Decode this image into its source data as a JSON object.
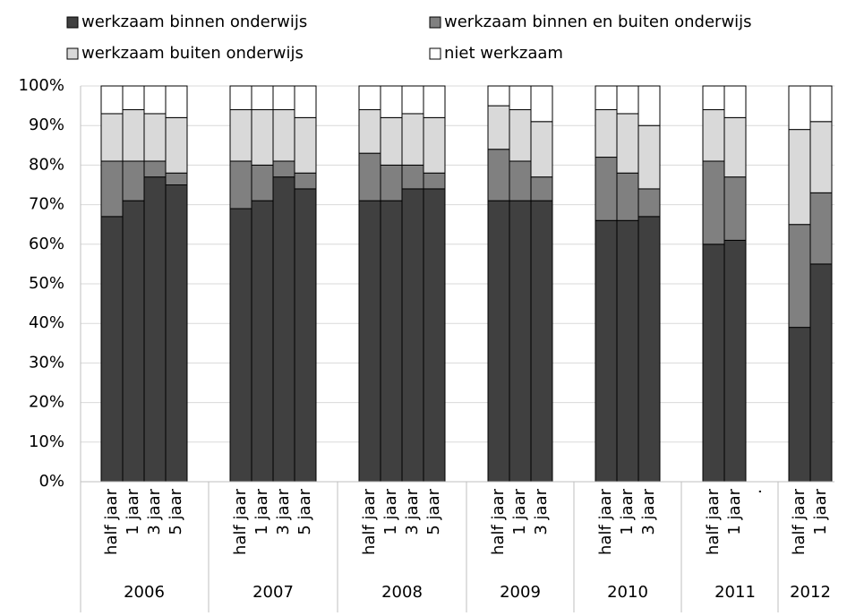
{
  "chart_data": {
    "type": "stacked-bar",
    "groups": [
      {
        "label": "2006",
        "categories": [
          "half jaar",
          "1 jaar",
          "3 jaar",
          "5 jaar"
        ]
      },
      {
        "label": "2007",
        "categories": [
          "half jaar",
          "1 jaar",
          "3 jaar",
          "5 jaar"
        ]
      },
      {
        "label": "2008",
        "categories": [
          "half jaar",
          "1 jaar",
          "3 jaar",
          "5 jaar"
        ]
      },
      {
        "label": "2009",
        "categories": [
          "half jaar",
          "1 jaar",
          "3 jaar"
        ]
      },
      {
        "label": "2010",
        "categories": [
          "half jaar",
          "1 jaar",
          "3 jaar"
        ]
      },
      {
        "label": "2011",
        "categories": [
          "half jaar",
          "1 jaar",
          "."
        ]
      },
      {
        "label": "2012",
        "categories": [
          "half jaar",
          "1 jaar"
        ]
      }
    ],
    "series": [
      {
        "name": "werkzaam binnen onderwijs",
        "color": "#404040",
        "values": [
          67,
          71,
          77,
          75,
          69,
          71,
          77,
          74,
          71,
          71,
          74,
          74,
          71,
          71,
          71,
          66,
          66,
          67,
          60,
          61,
          null,
          39,
          55
        ]
      },
      {
        "name": "werkzaam binnen en buiten onderwijs",
        "color": "#808080",
        "values": [
          14,
          10,
          4,
          3,
          12,
          9,
          4,
          4,
          12,
          9,
          6,
          4,
          13,
          10,
          6,
          16,
          12,
          7,
          21,
          16,
          null,
          26,
          18
        ]
      },
      {
        "name": "werkzaam buiten onderwijs",
        "color": "#d9d9d9",
        "values": [
          12,
          13,
          12,
          14,
          13,
          14,
          13,
          14,
          11,
          12,
          13,
          14,
          11,
          13,
          14,
          12,
          15,
          16,
          13,
          15,
          null,
          24,
          18
        ]
      },
      {
        "name": "niet werkzaam",
        "color": "#ffffff",
        "values": [
          7,
          6,
          7,
          8,
          6,
          6,
          6,
          8,
          6,
          8,
          7,
          8,
          5,
          6,
          9,
          6,
          7,
          10,
          6,
          8,
          null,
          11,
          9
        ]
      }
    ],
    "ylim": [
      0,
      100
    ],
    "yticks": [
      {
        "value": 0,
        "label": "0%"
      },
      {
        "value": 10,
        "label": "10%"
      },
      {
        "value": 20,
        "label": "20%"
      },
      {
        "value": 30,
        "label": "30%"
      },
      {
        "value": 40,
        "label": "40%"
      },
      {
        "value": 50,
        "label": "50%"
      },
      {
        "value": 60,
        "label": "60%"
      },
      {
        "value": 70,
        "label": "70%"
      },
      {
        "value": 80,
        "label": "80%"
      },
      {
        "value": 90,
        "label": "90%"
      },
      {
        "value": 100,
        "label": "100%"
      }
    ],
    "grid": true
  }
}
